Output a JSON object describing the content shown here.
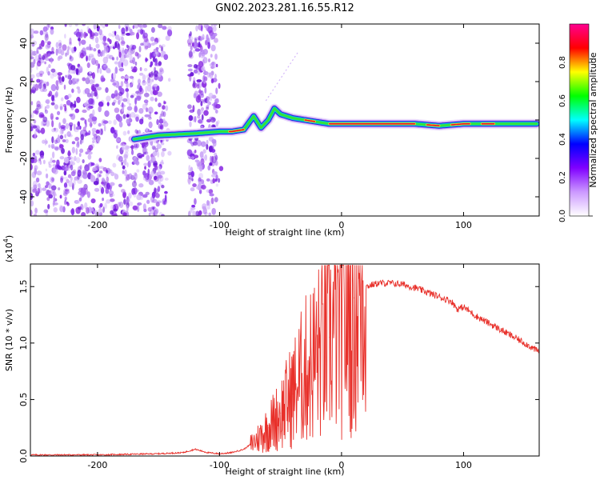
{
  "title": "GN02.2023.281.16.55.R12",
  "chart_data": [
    {
      "type": "heatmap",
      "xlabel": "Height of straight line (km)",
      "ylabel": "Frequency (Hz)",
      "xlim": [
        -255,
        162
      ],
      "ylim": [
        -50,
        50
      ],
      "xticks": [
        -200,
        -100,
        0,
        100
      ],
      "yticks": [
        -40,
        -20,
        0,
        20,
        40
      ],
      "colorbar": {
        "label": "Normalized spectral amplitude",
        "ticks": [
          "0.0",
          "0.2",
          "0.4",
          "0.6",
          "0.8"
        ],
        "range": [
          0,
          1
        ],
        "colors": [
          "#ffffff",
          "#cc99ff",
          "#8000ff",
          "#0000ff",
          "#00ffff",
          "#00ff00",
          "#ffff00",
          "#ff0000",
          "#ff0090"
        ]
      },
      "trace": {
        "x": [
          -170,
          -150,
          -120,
          -100,
          -90,
          -80,
          -72,
          -66,
          -60,
          -55,
          -50,
          -45,
          -40,
          -30,
          -20,
          -10,
          0,
          20,
          40,
          60,
          80,
          100,
          120,
          140,
          160
        ],
        "y": [
          -10,
          -8,
          -7,
          -6,
          -6,
          -5,
          2,
          -4,
          0,
          6,
          3,
          2,
          1,
          0,
          -1,
          -2,
          -2,
          -2,
          -2,
          -2,
          -3,
          -2,
          -2,
          -2,
          -2
        ]
      }
    },
    {
      "type": "line",
      "xlabel": "Height of straight line (km)",
      "ylabel": "SNR (10 * v/v)",
      "yunit_label": "(x10",
      "yunit_exp": "4",
      "yunit_close": ")",
      "xlim": [
        -255,
        162
      ],
      "ylim": [
        0,
        1.7
      ],
      "xticks": [
        -200,
        -100,
        0,
        100
      ],
      "yticks": [
        "0.0",
        "0.5",
        "1.0",
        "1.5"
      ],
      "color": "#e8302a",
      "x": [
        -255,
        -200,
        -150,
        -130,
        -120,
        -110,
        -100,
        -90,
        -80,
        -70,
        -60,
        -50,
        -40,
        -30,
        -20,
        -10,
        0,
        10,
        20,
        30,
        40,
        50,
        60,
        70,
        80,
        90,
        95,
        100,
        110,
        120,
        130,
        140,
        150,
        162
      ],
      "y": [
        0.01,
        0.01,
        0.02,
        0.03,
        0.06,
        0.03,
        0.02,
        0.03,
        0.06,
        0.14,
        0.25,
        0.38,
        0.55,
        0.75,
        0.9,
        1.05,
        1.22,
        1.4,
        1.5,
        1.53,
        1.53,
        1.52,
        1.49,
        1.45,
        1.41,
        1.37,
        1.3,
        1.32,
        1.24,
        1.18,
        1.12,
        1.06,
        1.0,
        0.92
      ]
    }
  ]
}
